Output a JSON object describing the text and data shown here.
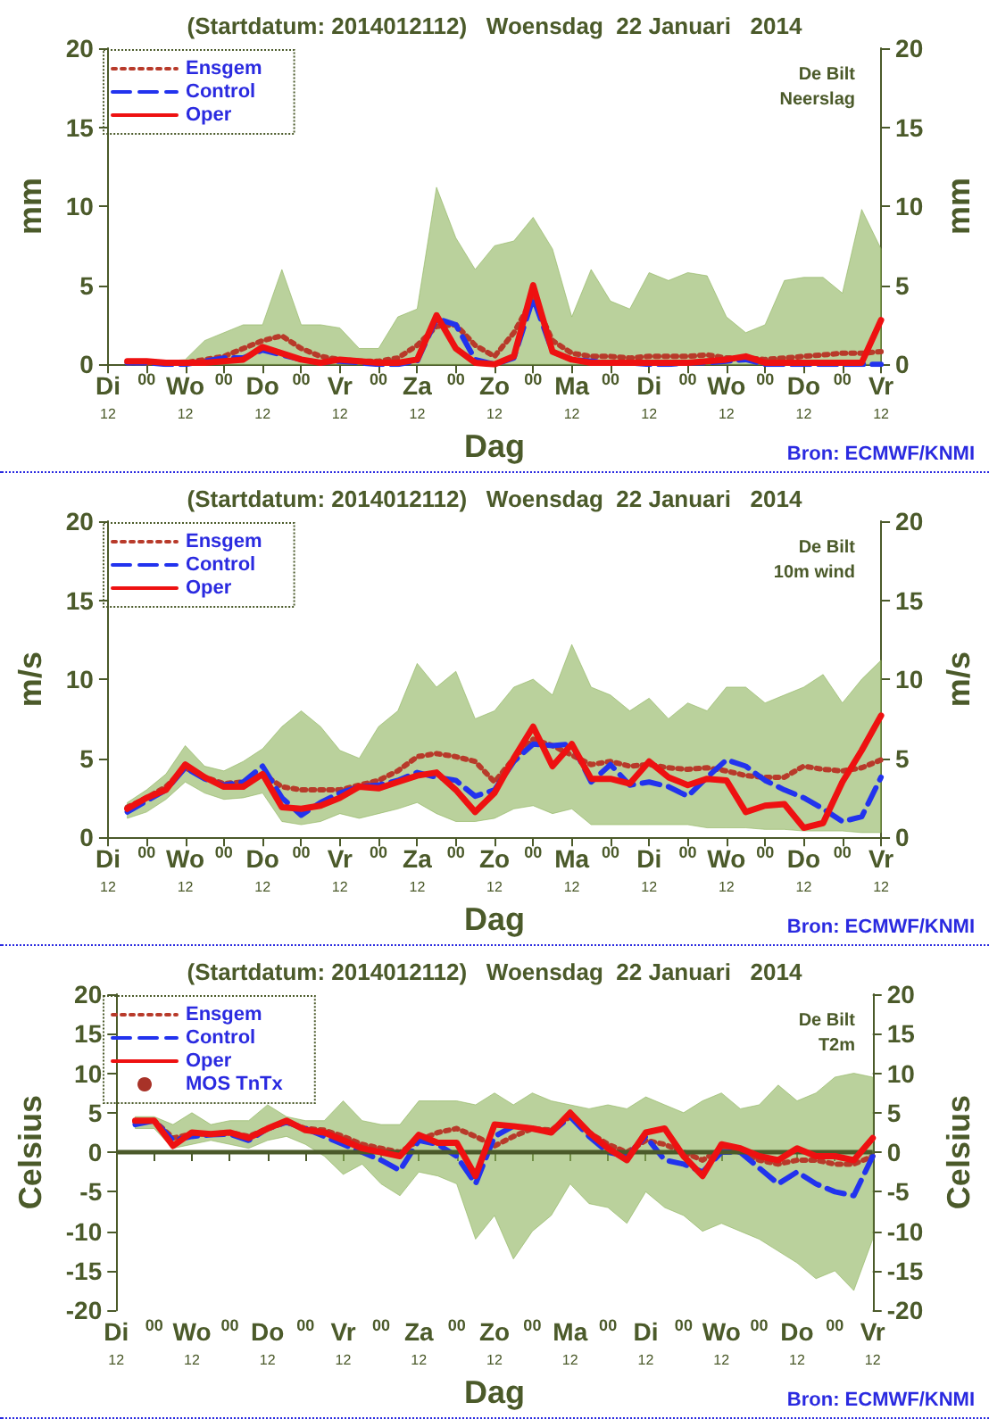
{
  "chart_data": [
    {
      "type": "line",
      "title": "(Startdatum: 2014012112)   Woensdag  22 Januari   2014",
      "xlabel": "Dag",
      "ylabel": "mm",
      "y2label": "mm",
      "annotations": [
        "De Bilt",
        "Neerslag",
        "Bron: ECMWF/KNMI"
      ],
      "legend": "top left",
      "grid": false,
      "marker": "none",
      "categories": [
        "Di\n12",
        null,
        "00",
        null,
        "Wo\n12",
        null,
        "00",
        null,
        "Do\n12",
        null,
        "00",
        null,
        "Vr\n12",
        null,
        "00",
        null,
        "Za\n12",
        null,
        "00",
        null,
        "Zo\n12",
        null,
        "00",
        null,
        "Ma\n12",
        null,
        "00",
        null,
        "Di\n12",
        null,
        "00",
        null,
        "Wo\n12",
        null,
        "00",
        null,
        "Do\n12",
        null,
        "00",
        null,
        "Vr\n12"
      ],
      "ylim": [
        0,
        20
      ],
      "yticks": [
        0,
        5,
        10,
        15,
        20
      ],
      "y2lim": [
        0,
        20
      ],
      "y2ticks": [
        0,
        5,
        10,
        15,
        20
      ],
      "series": [
        {
          "name": "Ensgem",
          "color": "#b83a2a",
          "line_style": "dotted",
          "values": [
            null,
            0.1,
            0.1,
            0.1,
            0.1,
            0.3,
            0.5,
            1.0,
            1.5,
            1.8,
            1.0,
            0.5,
            0.3,
            0.2,
            0.2,
            0.4,
            1.2,
            2.4,
            2.5,
            1.2,
            0.5,
            2.0,
            4.2,
            1.5,
            0.7,
            0.5,
            0.5,
            0.4,
            0.5,
            0.5,
            0.5,
            0.6,
            0.4,
            0.4,
            0.3,
            0.4,
            0.5,
            0.6,
            0.7,
            0.7,
            0.8
          ],
          "lower": [
            null,
            0,
            0,
            0,
            0,
            0,
            0,
            0,
            0,
            0,
            0,
            0,
            0,
            0,
            0,
            0,
            0,
            0,
            0,
            0,
            0,
            0,
            0,
            0,
            0,
            0,
            0,
            0,
            0,
            0,
            0,
            0,
            0,
            0,
            0,
            0,
            0,
            0,
            0,
            0,
            0
          ],
          "upper": [
            null,
            0.2,
            0.2,
            0.2,
            0.3,
            1.5,
            2,
            2.5,
            2.5,
            6,
            2.5,
            2.5,
            2.3,
            1,
            1,
            3,
            3.5,
            11.2,
            8,
            6,
            7.5,
            7.8,
            9.3,
            7.3,
            3,
            6,
            4,
            3.5,
            5.8,
            5.3,
            5.8,
            5.6,
            3,
            2,
            2.5,
            5.3,
            5.5,
            5.5,
            4.5,
            9.8,
            7.3
          ]
        },
        {
          "name": "Control",
          "color": "#2233ee",
          "line_style": "dashed",
          "values": [
            null,
            0.1,
            0.1,
            0,
            0,
            0.2,
            0.4,
            0.4,
            0.9,
            0.6,
            0.3,
            0.1,
            0.2,
            0.1,
            0,
            0,
            0.2,
            2.9,
            2.5,
            0.3,
            0,
            0.4,
            4.2,
            0.8,
            0.3,
            0.2,
            0.1,
            0.1,
            0,
            0,
            0.1,
            0.1,
            0.2,
            0.3,
            0,
            0,
            0,
            0,
            0,
            0,
            0
          ]
        },
        {
          "name": "Oper",
          "color": "#ee1111",
          "line_style": "solid",
          "values": [
            null,
            0.2,
            0.2,
            0.1,
            0.1,
            0.1,
            0.2,
            0.3,
            1.1,
            0.7,
            0.3,
            0.1,
            0.3,
            0.2,
            0.1,
            0.1,
            0.3,
            3.1,
            1.0,
            0.1,
            0.0,
            0.5,
            5.0,
            0.8,
            0.3,
            0.1,
            0.1,
            0.1,
            0.1,
            0.1,
            0.1,
            0.2,
            0.3,
            0.5,
            0.1,
            0.1,
            0.1,
            0.1,
            0.1,
            0.1,
            2.8
          ]
        }
      ]
    },
    {
      "type": "line",
      "title": "(Startdatum: 2014012112)   Woensdag  22 Januari   2014",
      "xlabel": "Dag",
      "ylabel": "m/s",
      "y2label": "m/s",
      "annotations": [
        "De Bilt",
        "10m wind",
        "Bron: ECMWF/KNMI"
      ],
      "legend": "top left",
      "grid": false,
      "marker": "none",
      "categories": [
        "Di\n12",
        null,
        "00",
        null,
        "Wo\n12",
        null,
        "00",
        null,
        "Do\n12",
        null,
        "00",
        null,
        "Vr\n12",
        null,
        "00",
        null,
        "Za\n12",
        null,
        "00",
        null,
        "Zo\n12",
        null,
        "00",
        null,
        "Ma\n12",
        null,
        "00",
        null,
        "Di\n12",
        null,
        "00",
        null,
        "Wo\n12",
        null,
        "00",
        null,
        "Do\n12",
        null,
        "00",
        null,
        "Vr\n12"
      ],
      "ylim": [
        0,
        20
      ],
      "yticks": [
        0,
        5,
        10,
        15,
        20
      ],
      "y2lim": [
        0,
        20
      ],
      "y2ticks": [
        0,
        5,
        10,
        15,
        20
      ],
      "series": [
        {
          "name": "Ensgem",
          "color": "#b83a2a",
          "line_style": "dotted",
          "values": [
            null,
            1.9,
            2.5,
            3.2,
            4.4,
            3.8,
            3.4,
            3.5,
            4.0,
            3.2,
            3.0,
            3.0,
            3.0,
            3.3,
            3.6,
            4.2,
            5.1,
            5.3,
            5.1,
            4.8,
            3.5,
            5.0,
            6.2,
            5.8,
            5.2,
            4.6,
            4.8,
            4.5,
            4.6,
            4.4,
            4.3,
            4.4,
            4.2,
            3.9,
            3.8,
            3.8,
            4.5,
            4.3,
            4.2,
            4.4,
            4.9
          ],
          "lower": [
            null,
            1.2,
            1.6,
            2.4,
            3.5,
            2.8,
            2.4,
            2.5,
            2.8,
            1.0,
            0.8,
            1.0,
            1.5,
            1.2,
            1.5,
            1.8,
            2.2,
            1.5,
            1.0,
            1.0,
            1.2,
            1.8,
            2.0,
            1.5,
            1.8,
            0.8,
            0.8,
            0.8,
            0.8,
            0.8,
            0.8,
            0.6,
            0.6,
            0.6,
            0.5,
            0.5,
            0.4,
            0.4,
            0.4,
            0.3,
            0.3
          ],
          "upper": [
            null,
            2.2,
            3.0,
            4.0,
            5.8,
            4.5,
            4.2,
            4.8,
            5.6,
            7.0,
            8.0,
            7.0,
            5.5,
            5.0,
            7.0,
            8.0,
            11.0,
            9.5,
            10.5,
            7.5,
            8.0,
            9.5,
            10.0,
            9.0,
            12.2,
            9.5,
            9.0,
            8.0,
            8.8,
            7.5,
            8.5,
            8.0,
            9.5,
            9.5,
            8.5,
            9.0,
            9.5,
            10.3,
            8.5,
            10.0,
            11.2
          ]
        },
        {
          "name": "Control",
          "color": "#2233ee",
          "line_style": "dashed",
          "values": [
            null,
            1.6,
            2.3,
            3.0,
            4.4,
            3.7,
            3.3,
            3.5,
            4.5,
            2.5,
            1.4,
            2.2,
            2.8,
            3.2,
            3.3,
            3.6,
            4.1,
            3.8,
            3.6,
            2.6,
            3.0,
            4.8,
            5.9,
            5.8,
            5.9,
            3.5,
            4.6,
            3.3,
            3.5,
            3.2,
            2.6,
            3.8,
            4.9,
            4.5,
            3.6,
            3.0,
            2.5,
            1.8,
            1.0,
            1.3,
            3.8
          ]
        },
        {
          "name": "Oper",
          "color": "#ee1111",
          "line_style": "solid",
          "values": [
            null,
            1.8,
            2.5,
            3.0,
            4.6,
            3.8,
            3.2,
            3.2,
            4.0,
            1.9,
            1.8,
            2.0,
            2.5,
            3.2,
            3.1,
            3.5,
            3.9,
            4.1,
            3.0,
            1.6,
            2.8,
            5.0,
            7.0,
            4.5,
            5.9,
            3.7,
            3.7,
            3.4,
            4.8,
            3.8,
            3.3,
            3.7,
            3.6,
            1.6,
            2.0,
            2.1,
            0.6,
            0.9,
            3.5,
            5.5,
            7.7
          ]
        }
      ]
    },
    {
      "type": "line",
      "title": "(Startdatum: 2014012112)   Woensdag  22 Januari   2014",
      "xlabel": "Dag",
      "ylabel": "Celsius",
      "y2label": "Celsius",
      "annotations": [
        "De Bilt",
        "T2m",
        "Bron: ECMWF/KNMI"
      ],
      "legend": "top left",
      "grid": false,
      "marker": "none",
      "categories": [
        "Di\n12",
        null,
        "00",
        null,
        "Wo\n12",
        null,
        "00",
        null,
        "Do\n12",
        null,
        "00",
        null,
        "Vr\n12",
        null,
        "00",
        null,
        "Za\n12",
        null,
        "00",
        null,
        "Zo\n12",
        null,
        "00",
        null,
        "Ma\n12",
        null,
        "00",
        null,
        "Di\n12",
        null,
        "00",
        null,
        "Wo\n12",
        null,
        "00",
        null,
        "Do\n12",
        null,
        "00",
        null,
        "Vr\n12"
      ],
      "ylim": [
        -20,
        20
      ],
      "yticks": [
        -20,
        -15,
        -10,
        -5,
        0,
        5,
        10,
        15,
        20
      ],
      "y2lim": [
        -20,
        20
      ],
      "y2ticks": [
        -20,
        -15,
        -10,
        -5,
        0,
        5,
        10,
        15,
        20
      ],
      "ref_lines": [
        {
          "axis": "y",
          "value": 0,
          "color": "#4b5a2a"
        }
      ],
      "series": [
        {
          "name": "Ensgem",
          "color": "#b83a2a",
          "line_style": "dotted",
          "values": [
            null,
            3.8,
            4.0,
            1.8,
            2.3,
            2.3,
            2.5,
            2.0,
            3.0,
            3.8,
            3.0,
            2.8,
            2.0,
            1.0,
            0.5,
            0.0,
            1.5,
            2.5,
            3.0,
            2.0,
            0.8,
            2.0,
            3.0,
            2.8,
            4.5,
            2.5,
            1.0,
            0.0,
            1.5,
            1.0,
            0.0,
            -1.0,
            0.5,
            0.0,
            -1.0,
            -1.5,
            -1.0,
            -1.0,
            -1.5,
            -1.5,
            -0.5
          ],
          "lower": [
            null,
            3.0,
            3.0,
            0.5,
            1.0,
            1.5,
            1.0,
            0.5,
            1.5,
            2.0,
            1.0,
            -0.5,
            -2.8,
            -1.5,
            -4.0,
            -5.5,
            -2.5,
            -3.0,
            -4.0,
            -11.0,
            -8.0,
            -13.5,
            -10.0,
            -8.0,
            -4.0,
            -6.5,
            -7.0,
            -9.0,
            -5.0,
            -7.0,
            -8.0,
            -10.0,
            -9.0,
            -10.0,
            -11.0,
            -12.5,
            -14.0,
            -16.0,
            -15.0,
            -17.5,
            -11.0
          ],
          "upper": [
            null,
            4.5,
            4.5,
            3.5,
            5.0,
            3.5,
            4.0,
            4.0,
            6.0,
            4.5,
            4.0,
            4.0,
            6.5,
            4.0,
            3.5,
            3.5,
            6.5,
            6.5,
            6.5,
            6.0,
            7.5,
            6.0,
            7.5,
            6.5,
            6.0,
            5.5,
            6.0,
            5.5,
            7.0,
            6.0,
            5.0,
            6.5,
            7.5,
            5.5,
            6.0,
            8.5,
            6.5,
            7.5,
            9.5,
            10.0,
            9.5
          ]
        },
        {
          "name": "Control",
          "color": "#2233ee",
          "line_style": "dashed",
          "values": [
            null,
            3.5,
            4.0,
            1.5,
            2.0,
            2.2,
            2.3,
            1.5,
            3.0,
            3.8,
            3.0,
            2.0,
            1.0,
            0.0,
            -1.0,
            -2.3,
            1.5,
            1.0,
            -0.5,
            -4.0,
            2.0,
            3.3,
            3.0,
            2.5,
            4.5,
            2.0,
            0.0,
            -0.5,
            2.0,
            -1.0,
            -1.5,
            -2.5,
            0.0,
            0.0,
            -2.0,
            -4.0,
            -2.5,
            -4.0,
            -5.0,
            -5.5,
            -0.5
          ]
        },
        {
          "name": "Oper",
          "color": "#ee1111",
          "line_style": "solid",
          "values": [
            null,
            4.0,
            4.0,
            0.8,
            2.5,
            2.3,
            2.5,
            1.8,
            3.0,
            4.0,
            2.8,
            2.5,
            1.5,
            0.5,
            0.0,
            -0.5,
            2.2,
            1.2,
            1.2,
            -3.0,
            3.5,
            3.3,
            3.0,
            2.5,
            5.0,
            2.5,
            0.5,
            -1.0,
            2.5,
            3.0,
            -0.5,
            -3.0,
            1.0,
            0.5,
            -0.5,
            -1.0,
            0.5,
            -0.5,
            -0.5,
            -1.0,
            1.8
          ]
        },
        {
          "name": "MOS TnTx",
          "type": "scatter",
          "marker": "circle",
          "color": "#a83228",
          "values": [
            null,
            null,
            null,
            null,
            null,
            null,
            null,
            null,
            null,
            null,
            null,
            null,
            null,
            null,
            null,
            null,
            null,
            null,
            null,
            null,
            null,
            null,
            null,
            null,
            null,
            null,
            null,
            null,
            null,
            null,
            null,
            null,
            null,
            null,
            null,
            null,
            null,
            null,
            null,
            null,
            null
          ]
        }
      ]
    }
  ]
}
